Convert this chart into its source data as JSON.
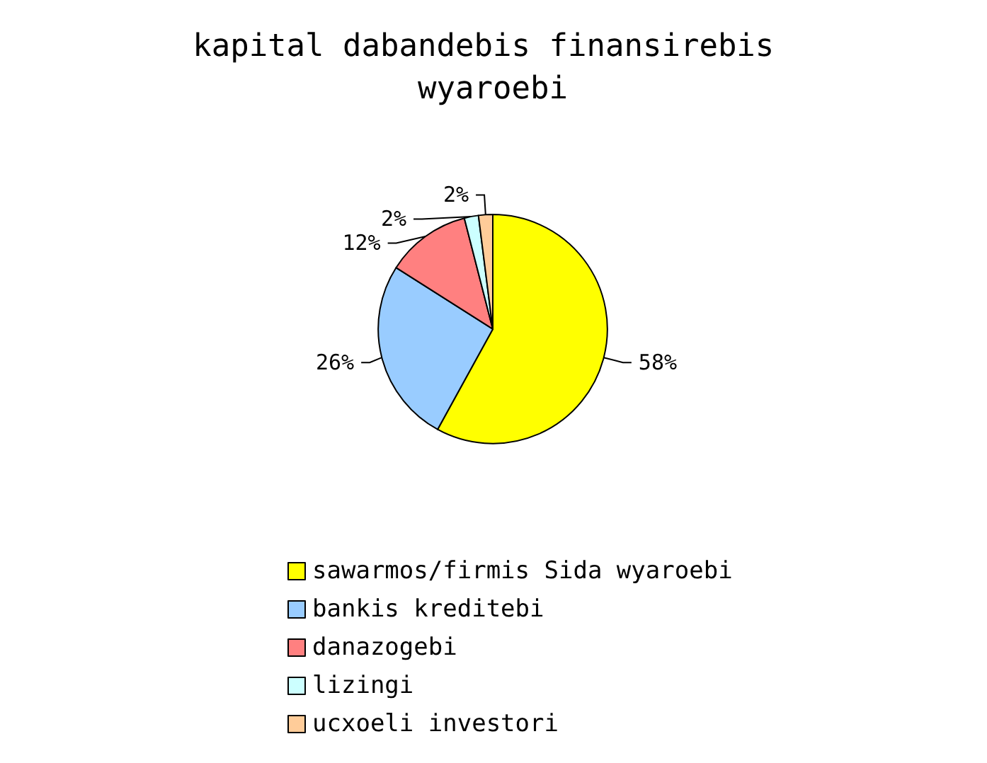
{
  "chart_data": {
    "type": "pie",
    "title": "kapital dabandebis finansirebis wyaroebi",
    "categories": [
      "sawarmos/firmis Sida wyaroebi",
      "bankis kreditebi",
      "danazogebi",
      "lizingi",
      "ucxoeli investori"
    ],
    "values": [
      58,
      26,
      12,
      2,
      2
    ],
    "value_labels": [
      "58%",
      "26%",
      "12%",
      "2%",
      "2%"
    ],
    "colors": [
      "#ffff00",
      "#99ccff",
      "#ff8080",
      "#ccffff",
      "#ffcc99"
    ],
    "legend": "bottom"
  }
}
